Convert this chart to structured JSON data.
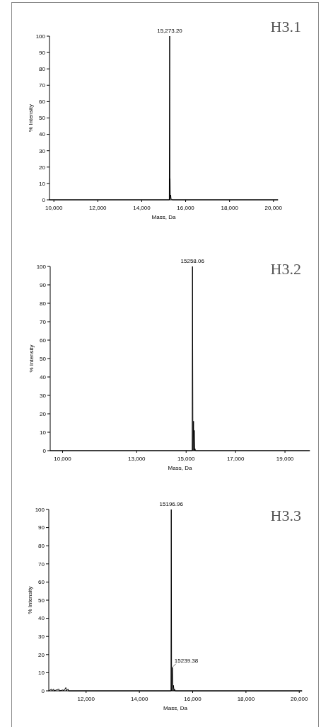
{
  "chart_data": [
    {
      "type": "line",
      "title": "H3.1",
      "xlabel": "Mass, Da",
      "ylabel": "% Intensity",
      "xlim": [
        9800,
        20200
      ],
      "ylim": [
        0,
        100
      ],
      "xticks": [
        {
          "value": 10000,
          "label": "10,000"
        },
        {
          "value": 12000,
          "label": "12,000"
        },
        {
          "value": 14000,
          "label": "14,000"
        },
        {
          "value": 16000,
          "label": "16,000"
        },
        {
          "value": 18000,
          "label": "18,000"
        },
        {
          "value": 20000,
          "label": "20,000"
        }
      ],
      "yticks": [
        0,
        10,
        20,
        30,
        40,
        50,
        60,
        70,
        80,
        90,
        100
      ],
      "series": [
        {
          "color": "#000000",
          "x": [
            9800,
            15255,
            15273.2,
            15285,
            15290,
            15298,
            15320,
            15335,
            15400,
            20200
          ],
          "values": [
            0,
            0,
            100,
            0,
            13,
            1,
            3,
            0.5,
            0,
            0
          ]
        }
      ],
      "annotations": [
        {
          "text": "15,273.20",
          "x": 15273.2,
          "y": 100
        }
      ]
    },
    {
      "type": "line",
      "title": "H3.2",
      "xlabel": "Mass, Da",
      "ylabel": "% Intensity",
      "xlim": [
        9500,
        20000
      ],
      "ylim": [
        0,
        100
      ],
      "xticks": [
        {
          "value": 10000,
          "label": "10,000"
        },
        {
          "value": 13000,
          "label": "13,000"
        },
        {
          "value": 15000,
          "label": "15,000"
        },
        {
          "value": 17000,
          "label": "17,000"
        },
        {
          "value": 19000,
          "label": "19,000"
        }
      ],
      "yticks": [
        0,
        10,
        20,
        30,
        40,
        50,
        60,
        70,
        80,
        90,
        100
      ],
      "series": [
        {
          "color": "#000000",
          "x": [
            9500,
            15245,
            15258.06,
            15275,
            15300,
            15315,
            15330,
            15345,
            15360,
            15380,
            20000
          ],
          "values": [
            0,
            0,
            100,
            0,
            16,
            0,
            11,
            0,
            1,
            0,
            0
          ]
        }
      ],
      "annotations": [
        {
          "text": "15258.06",
          "x": 15258.06,
          "y": 100
        }
      ]
    },
    {
      "type": "line",
      "title": "H3.3",
      "xlabel": "Mass, Da",
      "ylabel": "% Intensity",
      "xlim": [
        10600,
        20100
      ],
      "ylim": [
        0,
        100
      ],
      "xticks": [
        {
          "value": 12000,
          "label": "12,000"
        },
        {
          "value": 14000,
          "label": "14,000"
        },
        {
          "value": 16000,
          "label": "16,000"
        },
        {
          "value": 18000,
          "label": "18,000"
        },
        {
          "value": 20000,
          "label": "20,000"
        }
      ],
      "yticks": [
        0,
        10,
        20,
        30,
        40,
        50,
        60,
        70,
        80,
        90,
        100
      ],
      "series": [
        {
          "color": "#000000",
          "x": [
            10600,
            10700,
            10720,
            10780,
            10800,
            10980,
            11000,
            11140,
            11160,
            11240,
            11260,
            11320,
            11340,
            15185,
            15196.96,
            15210,
            15239.38,
            15260,
            15280,
            15300,
            15320,
            15340,
            20100
          ],
          "values": [
            0,
            1,
            0,
            1,
            0,
            1,
            0,
            0.5,
            0,
            1.8,
            0,
            1,
            0,
            0,
            100,
            0,
            13,
            0,
            3,
            0,
            1,
            0,
            0
          ]
        }
      ],
      "annotations": [
        {
          "text": "15196.96",
          "x": 15196.96,
          "y": 100
        },
        {
          "text": "15239.38",
          "x": 15239.38,
          "y": 13
        }
      ]
    }
  ]
}
